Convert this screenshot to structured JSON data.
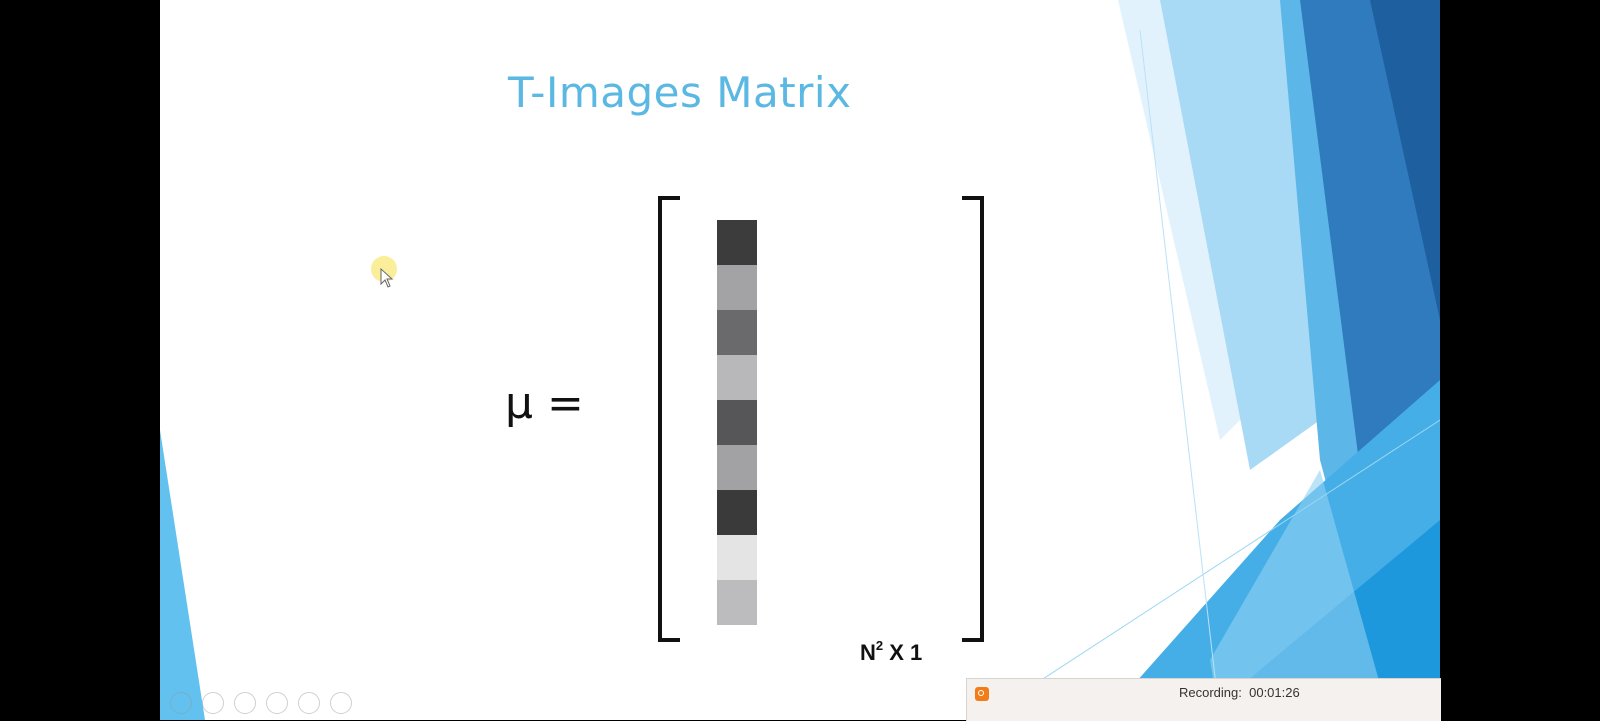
{
  "slide": {
    "title": "T-Images Matrix",
    "equation_lhs": "μ =",
    "dimension_base": "N",
    "dimension_exp": "2",
    "dimension_rest": "X 1",
    "vector_cells": [
      "#3c3c3c",
      "#a3a3a5",
      "#6a6a6c",
      "#b8b8ba",
      "#565658",
      "#a2a2a4",
      "#3a3a3a",
      "#e4e4e4",
      "#bcbcbe"
    ]
  },
  "colors": {
    "title": "#5bb8e3",
    "accent_dark": "#2467a6",
    "accent_light": "#a9d8f3"
  },
  "presenter_controls": [
    "previous-icon",
    "next-icon",
    "pen-icon",
    "slides-icon",
    "zoom-icon",
    "more-icon"
  ],
  "recorder": {
    "status": "Recording:",
    "time": "00:01:26"
  }
}
